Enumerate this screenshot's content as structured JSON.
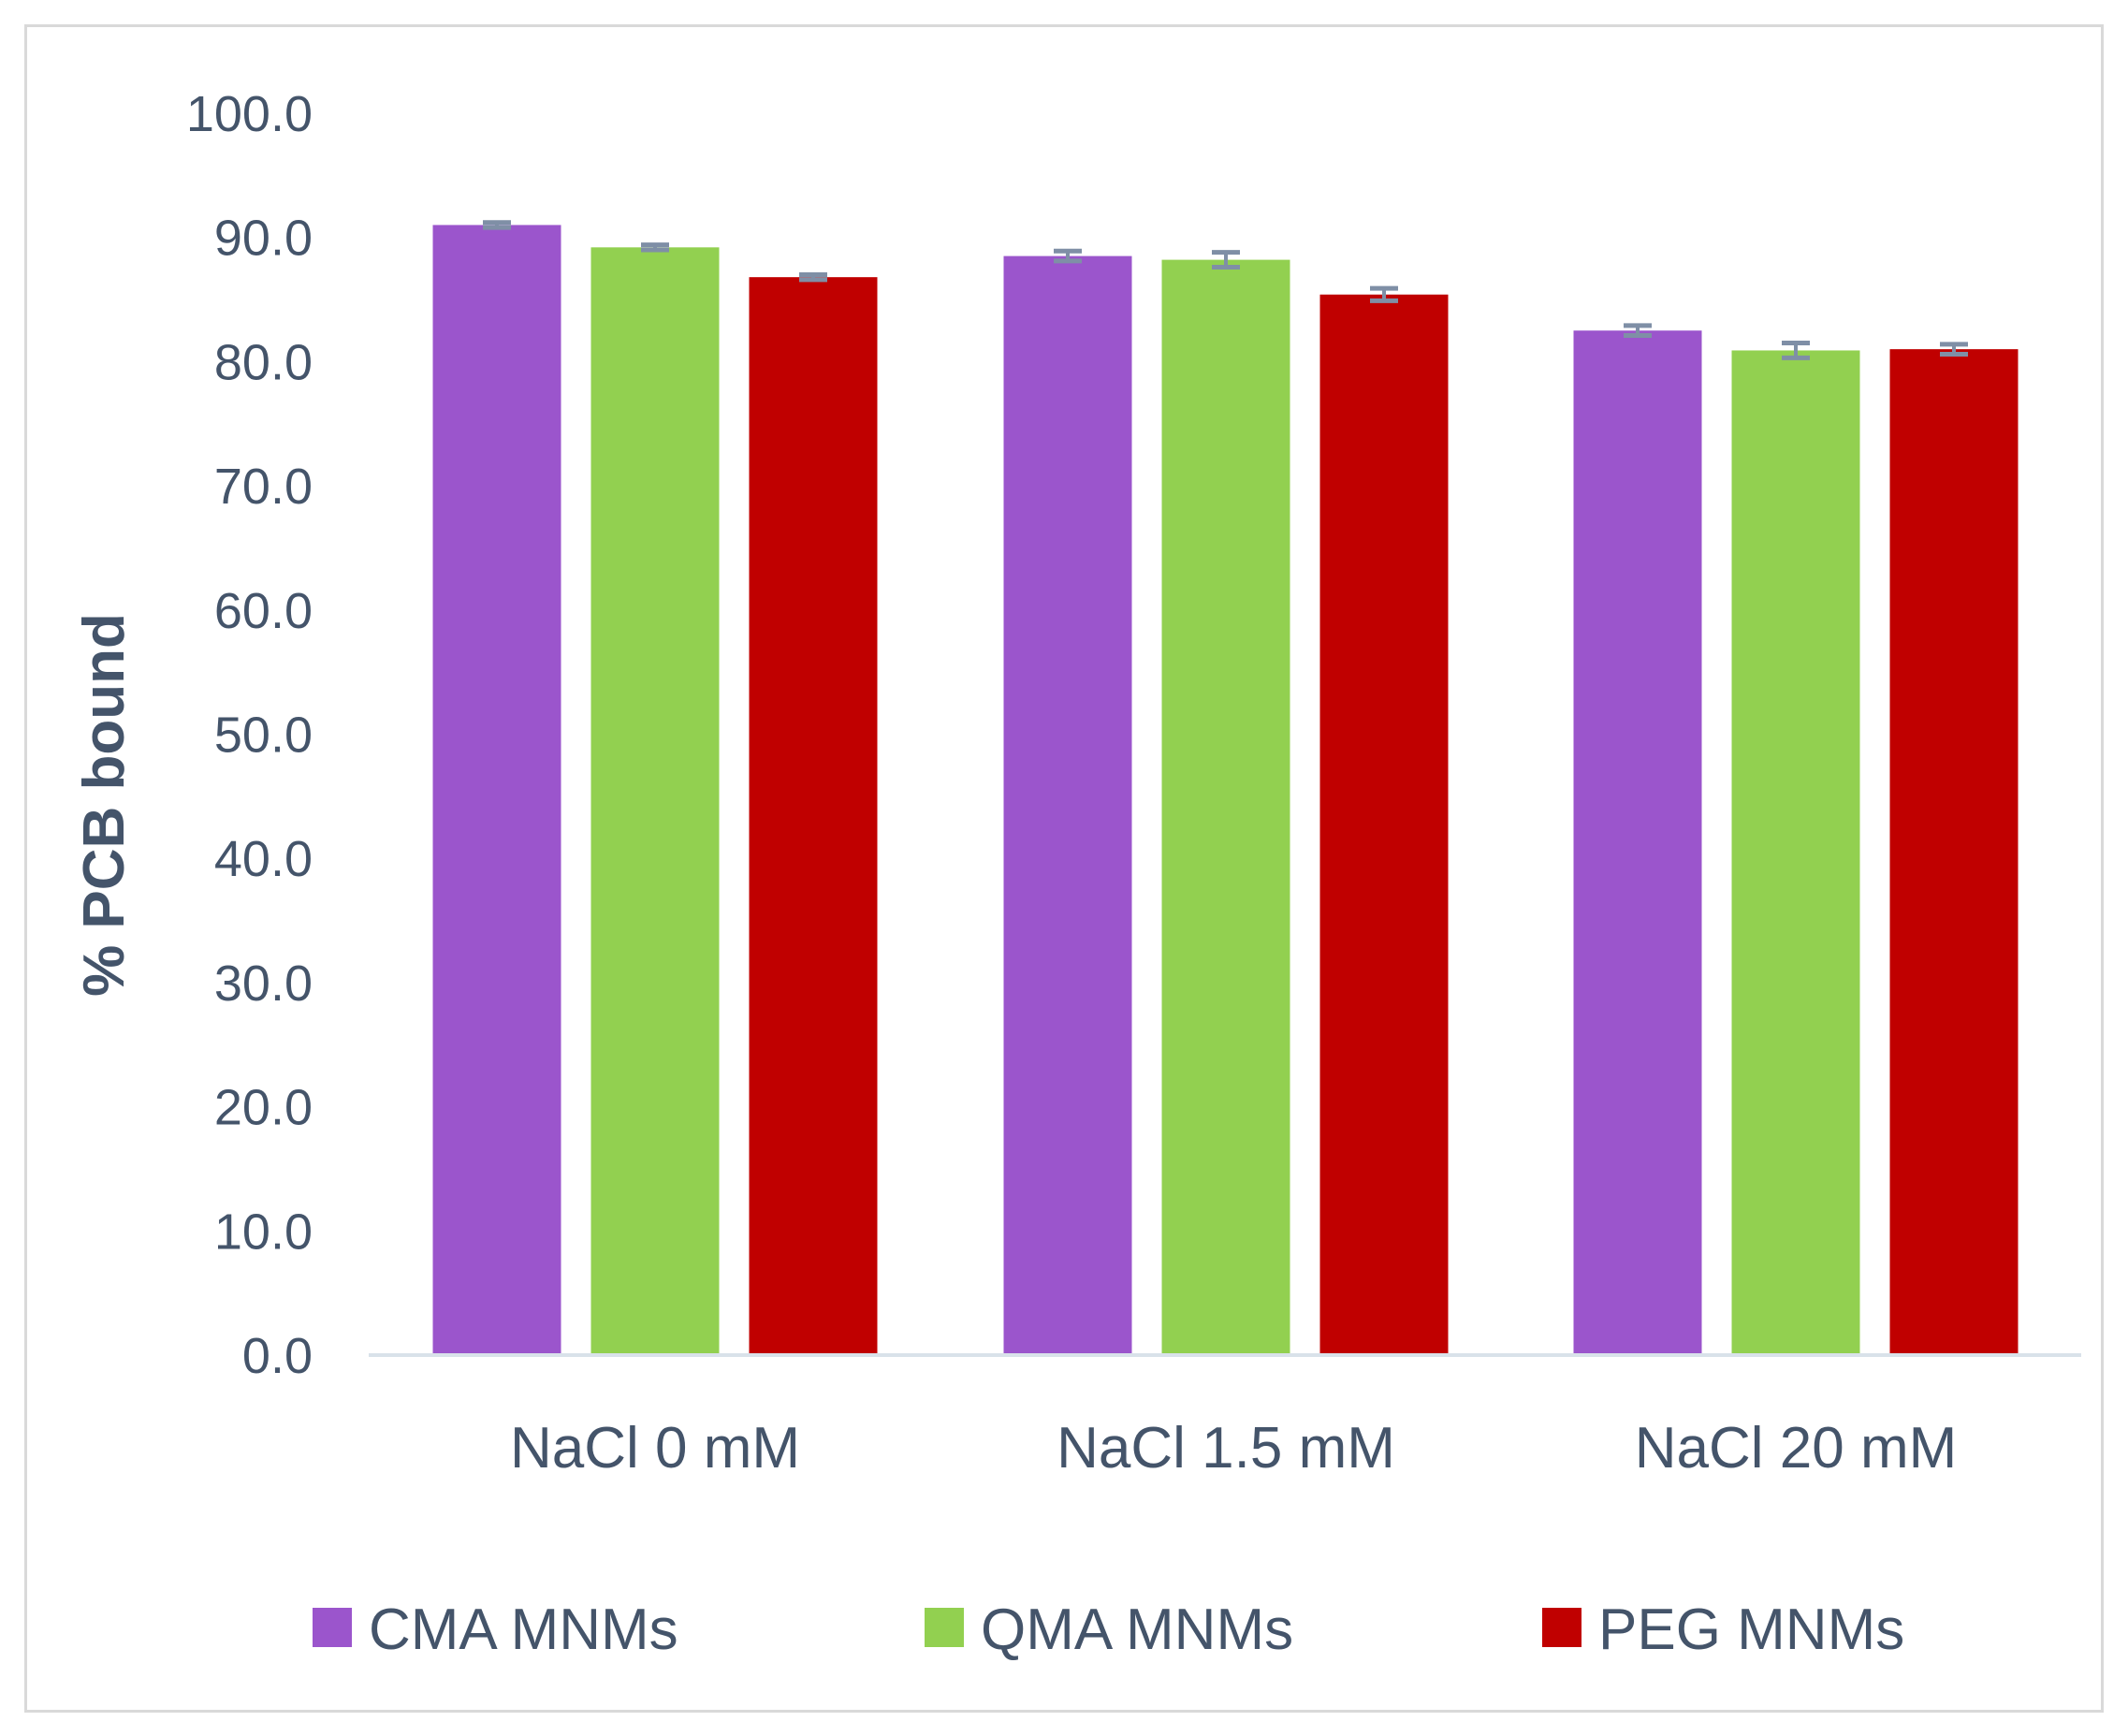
{
  "chart_data": {
    "type": "bar",
    "title": "",
    "xlabel": "",
    "ylabel": "% PCB bound",
    "ylim": [
      0,
      100
    ],
    "yticks": [
      "0.0",
      "10.0",
      "20.0",
      "30.0",
      "40.0",
      "50.0",
      "60.0",
      "70.0",
      "80.0",
      "90.0",
      "100.0"
    ],
    "categories": [
      "NaCl 0 mM",
      "NaCl 1.5 mM",
      "NaCl 20 mM"
    ],
    "series": [
      {
        "name": "CMA MNMs",
        "color": "#9b55cc",
        "values": [
          91.0,
          88.5,
          82.5
        ],
        "errors": [
          0.2,
          0.4,
          0.4
        ]
      },
      {
        "name": "QMA MNMs",
        "color": "#92d050",
        "values": [
          89.2,
          88.2,
          80.9
        ],
        "errors": [
          0.2,
          0.6,
          0.6
        ]
      },
      {
        "name": "PEG MNMs",
        "color": "#c00000",
        "values": [
          86.8,
          85.4,
          81.0
        ],
        "errors": [
          0.2,
          0.5,
          0.4
        ]
      }
    ],
    "grid": false,
    "legend_position": "bottom"
  }
}
